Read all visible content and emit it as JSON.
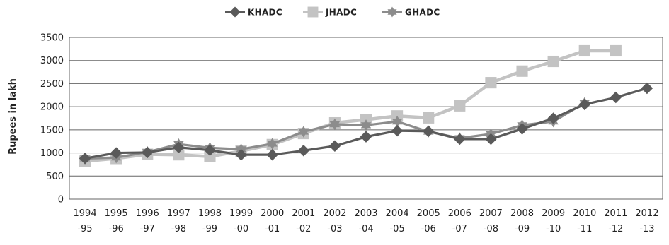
{
  "chart_data": {
    "type": "line",
    "title": "",
    "xlabel": "",
    "ylabel": "Rupees in lakh",
    "ylim": [
      0,
      3500
    ],
    "yticks": [
      "0",
      "500",
      "1000",
      "1500",
      "2000",
      "2500",
      "3000",
      "3500"
    ],
    "grid": true,
    "legend_position": "top-center",
    "categories": [
      [
        "1994",
        "-95"
      ],
      [
        "1995",
        "-96"
      ],
      [
        "1996",
        "-97"
      ],
      [
        "1997",
        "-98"
      ],
      [
        "1998",
        "-99"
      ],
      [
        "1999",
        "-00"
      ],
      [
        "2000",
        "-01"
      ],
      [
        "2001",
        "-02"
      ],
      [
        "2002",
        "-03"
      ],
      [
        "2003",
        "-04"
      ],
      [
        "2004",
        "-05"
      ],
      [
        "2005",
        "-06"
      ],
      [
        "2006",
        "-07"
      ],
      [
        "2007",
        "-08"
      ],
      [
        "2008",
        "-09"
      ],
      [
        "2009",
        "-10"
      ],
      [
        "2010",
        "-11"
      ],
      [
        "2011",
        "-12"
      ],
      [
        "2012",
        "-13"
      ]
    ],
    "series": [
      {
        "name": "KHADC",
        "marker": "diamond",
        "color": "#5a5a5a",
        "values": [
          880,
          1000,
          1010,
          1120,
          1060,
          960,
          960,
          1050,
          1150,
          1350,
          1480,
          1470,
          1300,
          1300,
          1520,
          1750,
          2050,
          2200,
          2400
        ]
      },
      {
        "name": "JHADC",
        "marker": "square",
        "color": "#c3c3c3",
        "values": [
          820,
          880,
          970,
          960,
          920,
          1040,
          1180,
          1420,
          1650,
          1720,
          1800,
          1760,
          2020,
          2520,
          2770,
          2980,
          3210,
          3210,
          null
        ]
      },
      {
        "name": "GHADC",
        "marker": "triangle",
        "color": "#8c8c8c",
        "values": [
          880,
          900,
          1020,
          1190,
          1110,
          1080,
          1200,
          1460,
          1620,
          1600,
          1680,
          1460,
          1320,
          1410,
          1600,
          1680,
          2080,
          null,
          null
        ]
      }
    ]
  }
}
